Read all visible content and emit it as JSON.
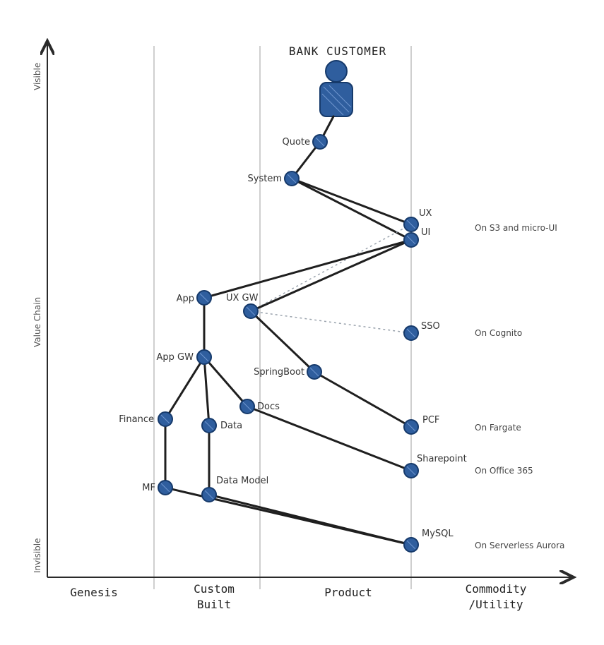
{
  "title": "BANK CUSTOMER",
  "axis": {
    "y_top": "Visible",
    "y_middle": "Value Chain",
    "y_bottom": "Invisible"
  },
  "stages": [
    {
      "line1": "Genesis",
      "line2": ""
    },
    {
      "line1": "Custom",
      "line2": "Built"
    },
    {
      "line1": "Product",
      "line2": ""
    },
    {
      "line1": "Commodity",
      "line2": "/Utility"
    }
  ],
  "nodes": {
    "quote": "Quote",
    "system": "System",
    "ux": "UX",
    "ui": "UI",
    "app": "App",
    "uxgw": "UX GW",
    "sso": "SSO",
    "appgw": "App GW",
    "springboot": "SpringBoot",
    "docs": "Docs",
    "finance": "Finance",
    "data": "Data",
    "pcf": "PCF",
    "sharepoint": "Sharepoint",
    "mf": "MF",
    "datamodel": "Data Model",
    "mysql": "MySQL"
  },
  "annotations": {
    "ui": "On S3 and micro-UI",
    "sso": "On Cognito",
    "pcf": "On Fargate",
    "sharepoint": "On Office 365",
    "mysql": "On Serverless Aurora"
  },
  "colors": {
    "node_fill": "#2f5e9e",
    "node_stroke": "#163a6b"
  }
}
